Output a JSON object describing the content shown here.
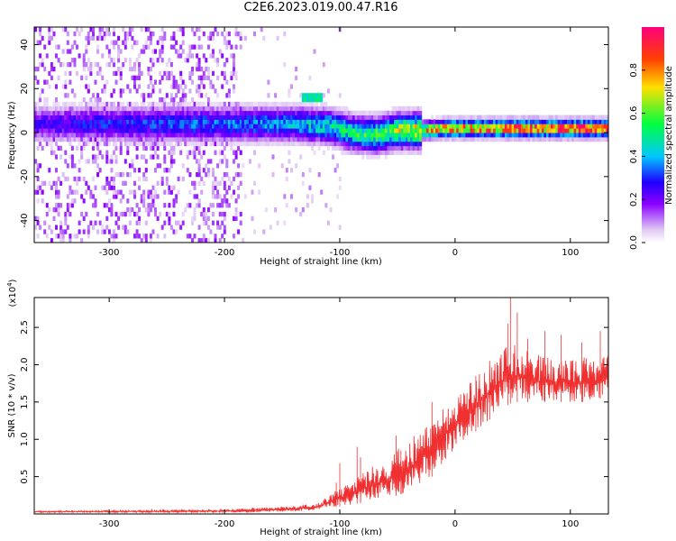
{
  "title": "C2E6.2023.019.00.47.R16",
  "chart_data": [
    {
      "type": "heatmap",
      "xlabel": "Height of straight line (km)",
      "ylabel": "Frequency (Hz)",
      "xlim": [
        -365,
        133
      ],
      "ylim": [
        -50,
        48
      ],
      "x_ticks": [
        -300,
        -200,
        -100,
        0,
        100
      ],
      "y_ticks": [
        -40,
        -20,
        0,
        20,
        40
      ],
      "colorbar": {
        "label": "Normalized spectral amplitude",
        "range": [
          0,
          1
        ],
        "ticks": [
          0.0,
          0.2,
          0.4,
          0.6,
          0.8
        ],
        "tick_labels": [
          "0.0",
          "0.2",
          "0.4",
          "0.6",
          "0.8"
        ],
        "colormap": [
          "#ffffff",
          "#d8b4f0",
          "#8a00ff",
          "#2000ff",
          "#00c8ff",
          "#00ff40",
          "#ffe000",
          "#ff4000",
          "#ff007a"
        ]
      },
      "band_center_hz": [
        [
          -360,
          4
        ],
        [
          -300,
          4
        ],
        [
          -200,
          4
        ],
        [
          -140,
          4
        ],
        [
          -110,
          3
        ],
        [
          -90,
          0
        ],
        [
          -70,
          -1
        ],
        [
          -50,
          1
        ],
        [
          -30,
          1
        ],
        [
          -10,
          2
        ],
        [
          0,
          2
        ],
        [
          50,
          2
        ],
        [
          133,
          2
        ]
      ],
      "band_peak_amplitude": [
        [
          -360,
          0.25
        ],
        [
          -300,
          0.3
        ],
        [
          -200,
          0.35
        ],
        [
          -140,
          0.4
        ],
        [
          -100,
          0.5
        ],
        [
          -60,
          0.6
        ],
        [
          -30,
          0.75
        ],
        [
          0,
          0.85
        ],
        [
          50,
          0.9
        ],
        [
          133,
          0.92
        ]
      ],
      "feature": {
        "x": -125,
        "frequency_hz": 16,
        "amplitude": 0.5
      }
    },
    {
      "type": "line",
      "xlabel": "Height of straight line (km)",
      "ylabel": "SNR (10 * v/v)",
      "y_scale_label": "(x10",
      "y_scale_exponent": "4",
      "y_scale_close": ")",
      "xlim": [
        -365,
        133
      ],
      "ylim": [
        0,
        2.9
      ],
      "x_ticks": [
        -300,
        -200,
        -100,
        0,
        100
      ],
      "y_ticks": [
        0.5,
        1.0,
        1.5,
        2.0,
        2.5
      ],
      "y_tick_labels": [
        "0.5",
        "1.0",
        "1.5",
        "2.0",
        "2.5"
      ],
      "color": "#f03030",
      "envelope": [
        [
          -365,
          0.02,
          0.04
        ],
        [
          -200,
          0.02,
          0.06
        ],
        [
          -180,
          0.02,
          0.08
        ],
        [
          -150,
          0.03,
          0.1
        ],
        [
          -120,
          0.05,
          0.14
        ],
        [
          -100,
          0.1,
          0.35
        ],
        [
          -80,
          0.15,
          0.55
        ],
        [
          -60,
          0.2,
          0.75
        ],
        [
          -40,
          0.3,
          1.0
        ],
        [
          -20,
          0.5,
          1.3
        ],
        [
          -5,
          0.8,
          1.5
        ],
        [
          10,
          1.0,
          1.7
        ],
        [
          25,
          1.2,
          2.0
        ],
        [
          40,
          1.4,
          2.2
        ],
        [
          50,
          1.5,
          2.3
        ],
        [
          60,
          1.5,
          2.2
        ],
        [
          80,
          1.5,
          2.1
        ],
        [
          100,
          1.5,
          2.1
        ],
        [
          120,
          1.5,
          2.1
        ],
        [
          133,
          1.6,
          2.2
        ]
      ],
      "spikes": [
        [
          -263,
          0.07
        ],
        [
          -253,
          0.06
        ],
        [
          -175,
          0.07
        ],
        [
          -161,
          0.08
        ],
        [
          -103,
          0.42
        ],
        [
          -100,
          0.68
        ],
        [
          -85,
          0.9
        ],
        [
          -82,
          0.76
        ],
        [
          -51,
          1.05
        ],
        [
          -47,
          0.85
        ],
        [
          -20,
          1.5
        ],
        [
          -8,
          1.25
        ],
        [
          18,
          1.85
        ],
        [
          30,
          2.05
        ],
        [
          46,
          2.55
        ],
        [
          48,
          2.9
        ],
        [
          54,
          2.7
        ],
        [
          63,
          2.35
        ],
        [
          78,
          2.45
        ],
        [
          92,
          2.4
        ],
        [
          110,
          2.3
        ],
        [
          126,
          2.45
        ]
      ]
    }
  ]
}
